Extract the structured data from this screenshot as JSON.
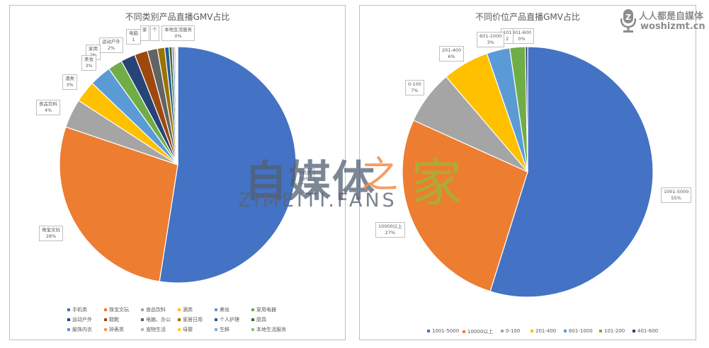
{
  "chart_data": [
    {
      "type": "pie",
      "title": "不同类别产品直播GMV占比",
      "categories": [
        "手机类",
        "珠宝文玩",
        "食品饮料",
        "酒类",
        "美妆",
        "家用电器",
        "运动户外",
        "鞋靴",
        "电脑、办公",
        "家居日用",
        "个人护理",
        "厨具",
        "服饰内衣",
        "钟表类",
        "宠物生活",
        "母婴",
        "生鲜",
        "本地生活服务"
      ],
      "values": [
        53,
        28,
        4,
        3,
        3,
        2,
        2,
        1.8,
        1.4,
        1,
        0.6,
        0.4,
        0.3,
        0.2,
        0.1,
        0.1,
        0.05,
        0.05
      ],
      "data_labels": [
        {
          "name": "手机类",
          "pct": "53%"
        },
        {
          "name": "珠宝文玩",
          "pct": "28%"
        },
        {
          "name": "食品饮料",
          "pct": "4%"
        },
        {
          "name": "酒类",
          "pct": "3%"
        },
        {
          "name": "美妆",
          "pct": "3%"
        },
        {
          "name": "家用电器",
          "pct": "2%"
        },
        {
          "name": "运动户外",
          "pct": "2%"
        },
        {
          "name": "电脑、办公",
          "pct": "1%"
        },
        {
          "name": "本地生活服务",
          "pct": "0%"
        }
      ],
      "colors": [
        "#4472c4",
        "#ed7d31",
        "#a5a5a5",
        "#ffc000",
        "#5b9bd5",
        "#70ad47",
        "#264478",
        "#9e480e",
        "#636363",
        "#997300",
        "#255e91",
        "#43682b",
        "#698ed0",
        "#f1975a",
        "#b7b7b7",
        "#ffcd33",
        "#7cafdd",
        "#8cc168"
      ],
      "legend_position": "bottom"
    },
    {
      "type": "pie",
      "title": "不同价位产品直播GMV占比",
      "categories": [
        "1001-5000",
        "10000以上",
        "0-100",
        "201-400",
        "601-1000",
        "101-200",
        "401-600"
      ],
      "values": [
        55,
        27,
        7,
        6,
        3,
        2,
        0.3
      ],
      "data_labels": [
        {
          "name": "1001-5000",
          "pct": "55%"
        },
        {
          "name": "10000以上",
          "pct": "27%"
        },
        {
          "name": "0-100",
          "pct": "7%"
        },
        {
          "name": "201-400",
          "pct": "6%"
        },
        {
          "name": "601-1000",
          "pct": "3%"
        },
        {
          "name": "101-200",
          "pct": "2%"
        },
        {
          "name": "401-600",
          "pct": "0%"
        }
      ],
      "colors": [
        "#4472c4",
        "#ed7d31",
        "#a5a5a5",
        "#ffc000",
        "#5b9bd5",
        "#70ad47",
        "#264478"
      ],
      "legend_position": "bottom"
    }
  ],
  "left": {
    "title": "不同类别产品直播GMV占比",
    "labels": {
      "phone": {
        "name": "手机类",
        "pct": "53%"
      },
      "jewelry": {
        "name": "珠宝文玩",
        "pct": "28%"
      },
      "food": {
        "name": "食品饮料",
        "pct": "4%"
      },
      "liquor": {
        "name": "酒类",
        "pct": "3%"
      },
      "beauty": {
        "name": "美妆",
        "pct": "3%"
      },
      "appliance": {
        "name": "家用",
        "pct": "2%"
      },
      "sports": {
        "name": "运动户外",
        "pct": "2%"
      },
      "computer": {
        "name": "电脑",
        "pct": "1"
      },
      "home": {
        "name": "家"
      },
      "personal": {
        "name": "个"
      },
      "local": {
        "name": "本地生活服务",
        "pct": "0%"
      }
    },
    "legend": [
      "手机类",
      "珠宝文玩",
      "食品饮料",
      "酒类",
      "美妆",
      "家用电器",
      "运动户外",
      "鞋靴",
      "电脑、办公",
      "家居日用",
      "个人护理",
      "厨具",
      "服饰内衣",
      "钟表类",
      "宠物生活",
      "母婴",
      "生鲜",
      "本地生活服务"
    ]
  },
  "right": {
    "title": "不同价位产品直播GMV占比",
    "labels": {
      "p1001": {
        "name": "1001-5000",
        "pct": "55%"
      },
      "p10000": {
        "name": "10000以上",
        "pct": "27%"
      },
      "p0": {
        "name": "0-100",
        "pct": "7%"
      },
      "p201": {
        "name": "201-400",
        "pct": "6%"
      },
      "p601": {
        "name": "601-1000",
        "pct": "3%"
      },
      "p101": {
        "name": "101",
        "pct": "2"
      },
      "p401": {
        "name": "401-600",
        "pct": "0%"
      }
    },
    "legend": [
      "1001-5000",
      "10000以上",
      "0-100",
      "201-400",
      "601-1000",
      "101-200",
      "401-600"
    ]
  },
  "watermark": {
    "cn": "自媒体",
    "zhi": "之",
    "jia": "家",
    "en": "ZIMEITI.FANS"
  },
  "logo": {
    "line1": "人人都是自媒体",
    "line2": "woshizmt.cn"
  }
}
